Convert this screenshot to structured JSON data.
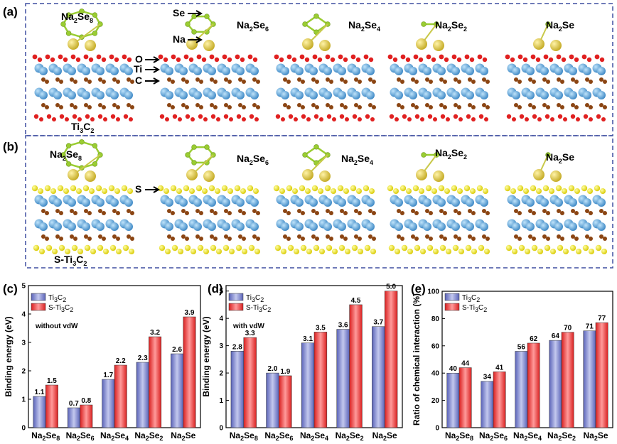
{
  "panel_labels": {
    "a": "(a)",
    "b": "(b)",
    "c": "(c)",
    "d": "(d)",
    "e": "(e)"
  },
  "structures": {
    "a_labels": [
      {
        "main": "Na",
        "sub": "2",
        "tail": "Se",
        "sub2": "8"
      },
      {
        "main": "Na",
        "sub": "2",
        "tail": "Se",
        "sub2": "6"
      },
      {
        "main": "Na",
        "sub": "2",
        "tail": "Se",
        "sub2": "4"
      },
      {
        "main": "Na",
        "sub": "2",
        "tail": "Se",
        "sub2": "2"
      },
      {
        "main": "Na",
        "sub": "2",
        "tail": "Se",
        "sub2": ""
      }
    ],
    "substrate_a": {
      "main": "Ti",
      "sub": "3",
      "tail": "C",
      "sub2": "2"
    },
    "substrate_b": {
      "pre": "S-Ti",
      "sub": "3",
      "tail": "C",
      "sub2": "2"
    },
    "atom_pointers_a": [
      "Se",
      "Na",
      "O",
      "Ti",
      "C"
    ],
    "atom_pointer_b": "S",
    "colors": {
      "Se": "#9ACD32",
      "Na": "#D4C23A",
      "O": "#E02020",
      "Ti": "#4C9FD6",
      "C": "#8B4513",
      "S": "#F2E400",
      "frame": "#3F4FA0"
    }
  },
  "legend": {
    "series1": {
      "pre": "Ti",
      "sub": "3",
      "tail": "C",
      "sub2": "2"
    },
    "series2": {
      "pre": "S-Ti",
      "sub": "3",
      "tail": "C",
      "sub2": "2"
    }
  },
  "chart_data": [
    {
      "type": "bar",
      "panel": "c",
      "ylabel": "Binding energy (eV)",
      "note": "without vdW",
      "ylim": [
        0,
        5
      ],
      "yticks": [
        "0",
        "1",
        "2",
        "3",
        "4",
        "5"
      ],
      "categories": [
        {
          "a": "Na",
          "s1": "2",
          "b": "Se",
          "s2": "8"
        },
        {
          "a": "Na",
          "s1": "2",
          "b": "Se",
          "s2": "6"
        },
        {
          "a": "Na",
          "s1": "2",
          "b": "Se",
          "s2": "4"
        },
        {
          "a": "Na",
          "s1": "2",
          "b": "Se",
          "s2": "2"
        },
        {
          "a": "Na",
          "s1": "2",
          "b": "Se",
          "s2": ""
        }
      ],
      "series": [
        {
          "name": "Ti3C2",
          "values": [
            1.1,
            0.7,
            1.7,
            2.3,
            2.6
          ],
          "labels": [
            "1.1",
            "0.7",
            "1.7",
            "2.3",
            "2.6"
          ]
        },
        {
          "name": "S-Ti3C2",
          "values": [
            1.5,
            0.8,
            2.2,
            3.2,
            3.9
          ],
          "labels": [
            "1.5",
            "0.8",
            "2.2",
            "3.2",
            "3.9"
          ]
        }
      ]
    },
    {
      "type": "bar",
      "panel": "d",
      "ylabel": "Binding energy (eV)",
      "note": "with vdW",
      "ylim": [
        0,
        5.2
      ],
      "yticks": [
        "0",
        "1",
        "2",
        "3",
        "4",
        "5"
      ],
      "categories": [
        {
          "a": "Na",
          "s1": "2",
          "b": "Se",
          "s2": "8"
        },
        {
          "a": "Na",
          "s1": "2",
          "b": "Se",
          "s2": "6"
        },
        {
          "a": "Na",
          "s1": "2",
          "b": "Se",
          "s2": "4"
        },
        {
          "a": "Na",
          "s1": "2",
          "b": "Se",
          "s2": "2"
        },
        {
          "a": "Na",
          "s1": "2",
          "b": "Se",
          "s2": ""
        }
      ],
      "series": [
        {
          "name": "Ti3C2",
          "values": [
            2.8,
            2.0,
            3.1,
            3.6,
            3.7
          ],
          "labels": [
            "2.8",
            "2.0",
            "3.1",
            "3.6",
            "3.7"
          ]
        },
        {
          "name": "S-Ti3C2",
          "values": [
            3.3,
            1.9,
            3.5,
            4.5,
            5.0
          ],
          "labels": [
            "3.3",
            "1.9",
            "3.5",
            "4.5",
            "5.0"
          ]
        }
      ]
    },
    {
      "type": "bar",
      "panel": "e",
      "ylabel": "Ratio of chemical interaction (%)",
      "note": "",
      "ylim": [
        0,
        100
      ],
      "yticks": [
        "0",
        "20",
        "40",
        "60",
        "80",
        "100"
      ],
      "categories": [
        {
          "a": "Na",
          "s1": "2",
          "b": "Se",
          "s2": "8"
        },
        {
          "a": "Na",
          "s1": "2",
          "b": "Se",
          "s2": "6"
        },
        {
          "a": "Na",
          "s1": "2",
          "b": "Se",
          "s2": "4"
        },
        {
          "a": "Na",
          "s1": "2",
          "b": "Se",
          "s2": "2"
        },
        {
          "a": "Na",
          "s1": "2",
          "b": "Se",
          "s2": ""
        }
      ],
      "series": [
        {
          "name": "Ti3C2",
          "values": [
            40,
            34,
            56,
            64,
            71
          ],
          "labels": [
            "40",
            "34",
            "56",
            "64",
            "71"
          ]
        },
        {
          "name": "S-Ti3C2",
          "values": [
            44,
            41,
            62,
            70,
            77
          ],
          "labels": [
            "44",
            "41",
            "62",
            "70",
            "77"
          ]
        }
      ]
    }
  ]
}
